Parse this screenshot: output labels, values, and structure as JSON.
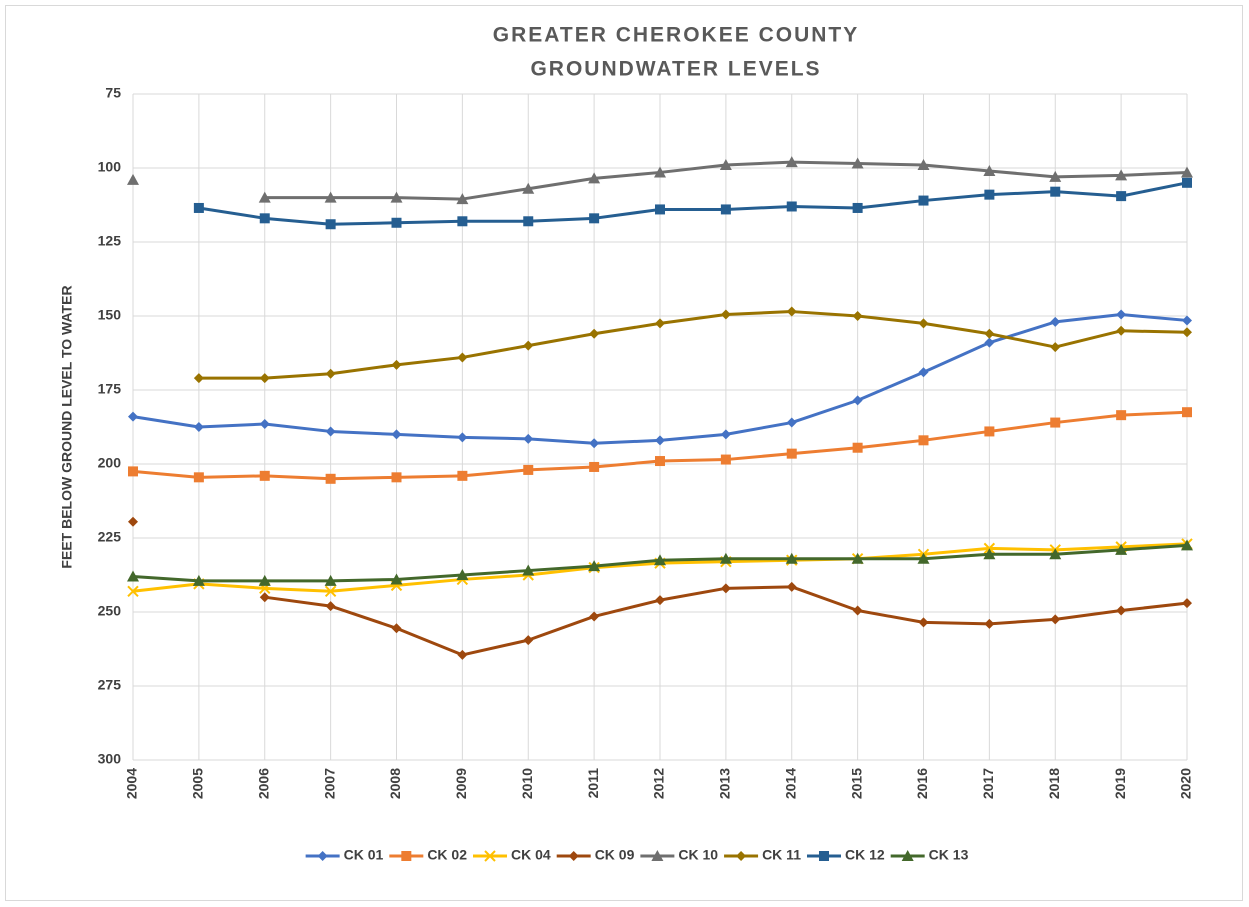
{
  "chart_data": {
    "type": "line",
    "title": [
      "GREATER CHEROKEE COUNTY",
      "GROUNDWATER LEVELS"
    ],
    "y_label": "FEET BELOW GROUND LEVEL TO WATER",
    "categories": [
      "2004",
      "2005",
      "2006",
      "2007",
      "2008",
      "2009",
      "2010",
      "2011",
      "2012",
      "2013",
      "2014",
      "2015",
      "2016",
      "2017",
      "2018",
      "2019",
      "2020"
    ],
    "ylim": [
      75,
      300
    ],
    "yticks": [
      75,
      100,
      125,
      150,
      175,
      200,
      225,
      250,
      275,
      300
    ],
    "y_reversed": true,
    "grid": true,
    "legend": "bottom",
    "series": [
      {
        "name": "CK 01",
        "color": "#4472c4",
        "marker": "diamond",
        "values": [
          184,
          187.5,
          186.5,
          189,
          190,
          191,
          191.5,
          193,
          192,
          190,
          186,
          178.5,
          169,
          159,
          152,
          149.5,
          151.5
        ]
      },
      {
        "name": "CK 02",
        "color": "#ed7d31",
        "marker": "square",
        "values": [
          202.5,
          204.5,
          204,
          205,
          204.5,
          204,
          202,
          201,
          199,
          198.5,
          196.5,
          194.5,
          192,
          189,
          186,
          183.5,
          182.5
        ]
      },
      {
        "name": "CK 04",
        "color": "#ffc000",
        "marker": "x",
        "values": [
          243,
          240.5,
          242,
          243,
          241,
          239,
          237.5,
          235,
          233.5,
          233,
          232.5,
          232,
          230.5,
          228.5,
          229,
          228,
          227
        ]
      },
      {
        "name": "CK 09",
        "color": "#9e480e",
        "marker": "diamond",
        "values": [
          219.5,
          null,
          245,
          248,
          255.5,
          264.5,
          259.5,
          251.5,
          246,
          242,
          241.5,
          249.5,
          253.5,
          254,
          252.5,
          249.5,
          247
        ]
      },
      {
        "name": "CK 10",
        "color": "#6f6f6f",
        "marker": "triangle",
        "values": [
          104,
          null,
          110,
          110,
          110,
          110.5,
          107,
          103.5,
          101.5,
          99,
          98,
          98.5,
          99,
          101,
          103,
          102.5,
          101.5
        ]
      },
      {
        "name": "CK 11",
        "color": "#997300",
        "marker": "diamond",
        "values": [
          null,
          171,
          171,
          169.5,
          166.5,
          164,
          160,
          156,
          152.5,
          149.5,
          148.5,
          150,
          152.5,
          156,
          160.5,
          155,
          155.5
        ]
      },
      {
        "name": "CK 12",
        "color": "#255e91",
        "marker": "square",
        "values": [
          null,
          113.5,
          117,
          119,
          118.5,
          118,
          118,
          117,
          114,
          114,
          113,
          113.5,
          111,
          109,
          108,
          109.5,
          105
        ]
      },
      {
        "name": "CK 13",
        "color": "#43682b",
        "marker": "triangle",
        "values": [
          238,
          239.5,
          239.5,
          239.5,
          239,
          237.5,
          236,
          234.5,
          232.5,
          232,
          232,
          232,
          232,
          230.5,
          230.5,
          229,
          227.5
        ]
      }
    ]
  }
}
